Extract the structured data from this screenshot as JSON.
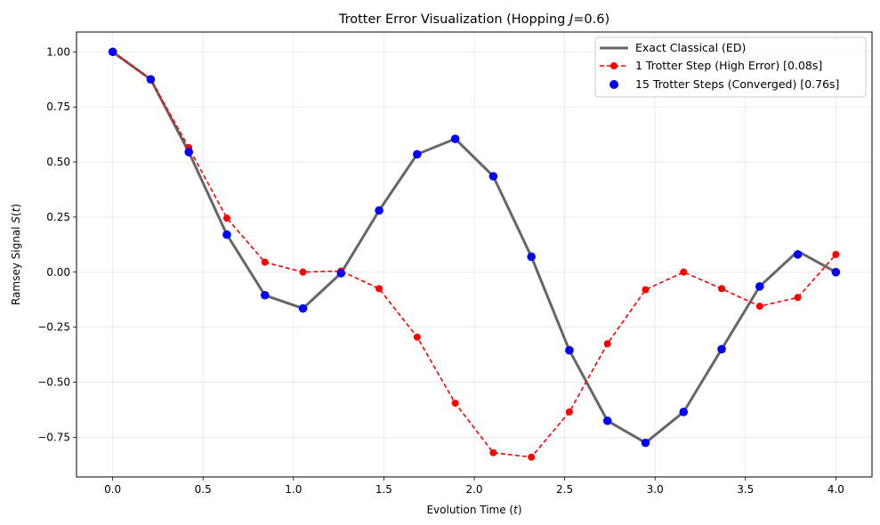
{
  "chart_data": {
    "type": "line",
    "title": "Trotter Error Visualization (Hopping J=0.6)",
    "title_parts": {
      "prefix": "Trotter Error Visualization (Hopping ",
      "var": "J",
      "suffix": "=0.6)"
    },
    "xlabel": "Evolution Time (t)",
    "xlabel_parts": {
      "prefix": "Evolution Time (",
      "var": "t",
      "suffix": ")"
    },
    "ylabel": "Ramsey Signal S(t)",
    "ylabel_parts": {
      "prefix": "Ramsey Signal ",
      "var": "S",
      "mid": "(",
      "var2": "t",
      "suffix": ")"
    },
    "xlim": [
      -0.2,
      4.2
    ],
    "ylim": [
      -0.93,
      1.09
    ],
    "xticks": [
      0.0,
      0.5,
      1.0,
      1.5,
      2.0,
      2.5,
      3.0,
      3.5,
      4.0
    ],
    "xtick_labels": [
      "0.0",
      "0.5",
      "1.0",
      "1.5",
      "2.0",
      "2.5",
      "3.0",
      "3.5",
      "4.0"
    ],
    "yticks": [
      1.0,
      0.75,
      0.5,
      0.25,
      0.0,
      -0.25,
      -0.5,
      -0.75
    ],
    "ytick_labels": [
      "1.00",
      "0.75",
      "0.50",
      "0.25",
      "0.00",
      "−0.25",
      "−0.50",
      "−0.75"
    ],
    "grid": true,
    "legend_position": "top-right",
    "x": [
      0.0,
      0.2105,
      0.4211,
      0.6316,
      0.8421,
      1.0526,
      1.2632,
      1.4737,
      1.6842,
      1.8947,
      2.1053,
      2.3158,
      2.5263,
      2.7368,
      2.9474,
      3.1579,
      3.3684,
      3.5789,
      3.7895,
      4.0
    ],
    "series": [
      {
        "name": "Exact Classical (ED)",
        "color": "#666666",
        "style": "solid-line",
        "values": [
          1.0,
          0.875,
          0.545,
          0.17,
          -0.105,
          -0.165,
          -0.005,
          0.28,
          0.535,
          0.605,
          0.435,
          0.07,
          -0.355,
          -0.675,
          -0.775,
          -0.635,
          -0.35,
          -0.065,
          0.095,
          0.0
        ]
      },
      {
        "name": "1 Trotter Step (High Error) [0.08s]",
        "color": "#ff0000",
        "style": "dashed-line-markers",
        "values": [
          1.0,
          0.875,
          0.565,
          0.245,
          0.045,
          0.0,
          0.005,
          -0.075,
          -0.295,
          -0.595,
          -0.82,
          -0.84,
          -0.635,
          -0.325,
          -0.08,
          0.0,
          -0.075,
          -0.155,
          -0.115,
          0.08
        ]
      },
      {
        "name": "15 Trotter Steps (Converged) [0.76s]",
        "color": "#0000ff",
        "style": "markers",
        "values": [
          1.0,
          0.875,
          0.545,
          0.17,
          -0.105,
          -0.165,
          -0.005,
          0.28,
          0.535,
          0.605,
          0.435,
          0.07,
          -0.355,
          -0.675,
          -0.775,
          -0.635,
          -0.35,
          -0.065,
          0.08,
          0.0
        ]
      }
    ]
  }
}
